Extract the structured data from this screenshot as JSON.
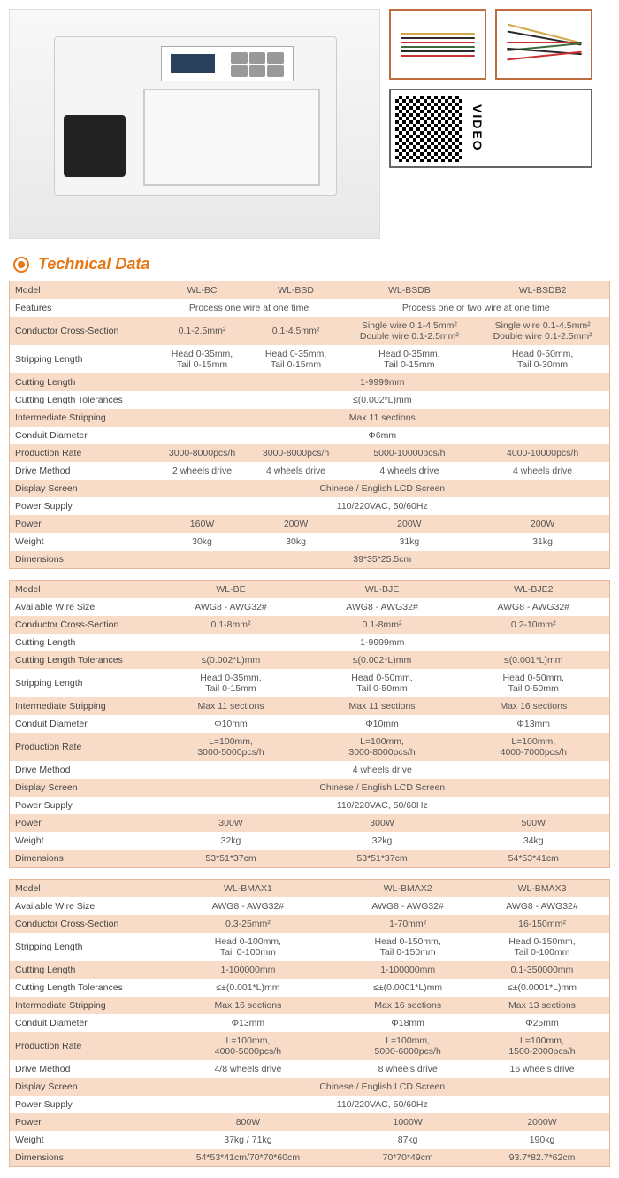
{
  "header": {
    "title": "Technical Data",
    "qr_label": "VIDEO"
  },
  "wire_colors": [
    "#d4a84a",
    "#2a2a2a",
    "#c93030",
    "#3a6b3a",
    "#2a2a2a",
    "#c93030"
  ],
  "tables": [
    {
      "cols": 4,
      "rows": [
        {
          "label": "Model",
          "vals": [
            "WL-BC",
            "WL-BSD",
            "WL-BSDB",
            "WL-BSDB2"
          ]
        },
        {
          "label": "Features",
          "span": [
            [
              0,
              2,
              "Process one wire at one time"
            ],
            [
              2,
              2,
              "Process one or two wire at one time"
            ]
          ]
        },
        {
          "label": "Conductor Cross-Section",
          "vals": [
            "0.1-2.5mm²",
            "0.1-4.5mm²",
            "Single wire 0.1-4.5mm²\nDouble wire 0.1-2.5mm²",
            "Single wire 0.1-4.5mm²\nDouble wire 0.1-2.5mm²"
          ]
        },
        {
          "label": "Stripping Length",
          "vals": [
            "Head 0-35mm,\nTail 0-15mm",
            "Head 0-35mm,\nTail 0-15mm",
            "Head 0-35mm,\nTail 0-15mm",
            "Head 0-50mm,\nTail 0-30mm"
          ]
        },
        {
          "label": "Cutting Length",
          "span": [
            [
              0,
              4,
              "1-9999mm"
            ]
          ]
        },
        {
          "label": "Cutting Length Tolerances",
          "span": [
            [
              0,
              4,
              "≤(0.002*L)mm"
            ]
          ]
        },
        {
          "label": "Intermediate Stripping",
          "span": [
            [
              0,
              4,
              "Max 11 sections"
            ]
          ]
        },
        {
          "label": "Conduit Diameter",
          "span": [
            [
              0,
              4,
              "Φ6mm"
            ]
          ]
        },
        {
          "label": "Production Rate",
          "vals": [
            "3000-8000pcs/h",
            "3000-8000pcs/h",
            "5000-10000pcs/h",
            "4000-10000pcs/h"
          ]
        },
        {
          "label": "Drive Method",
          "vals": [
            "2 wheels drive",
            "4 wheels drive",
            "4 wheels drive",
            "4 wheels drive"
          ]
        },
        {
          "label": "Display Screen",
          "span": [
            [
              0,
              4,
              "Chinese / English LCD Screen"
            ]
          ]
        },
        {
          "label": "Power Supply",
          "span": [
            [
              0,
              4,
              "110/220VAC, 50/60Hz"
            ]
          ]
        },
        {
          "label": "Power",
          "vals": [
            "160W",
            "200W",
            "200W",
            "200W"
          ]
        },
        {
          "label": "Weight",
          "vals": [
            "30kg",
            "30kg",
            "31kg",
            "31kg"
          ]
        },
        {
          "label": "Dimensions",
          "span": [
            [
              0,
              4,
              "39*35*25.5cm"
            ]
          ]
        }
      ]
    },
    {
      "cols": 3,
      "rows": [
        {
          "label": "Model",
          "vals": [
            "WL-BE",
            "WL-BJE",
            "WL-BJE2"
          ]
        },
        {
          "label": "Available Wire Size",
          "vals": [
            "AWG8 - AWG32#",
            "AWG8 - AWG32#",
            "AWG8 - AWG32#"
          ]
        },
        {
          "label": "Conductor Cross-Section",
          "vals": [
            "0.1-8mm²",
            "0.1-8mm²",
            "0.2-10mm²"
          ]
        },
        {
          "label": "Cutting Length",
          "span": [
            [
              0,
              3,
              "1-9999mm"
            ]
          ]
        },
        {
          "label": "Cutting Length Tolerances",
          "vals": [
            "≤(0.002*L)mm",
            "≤(0.002*L)mm",
            "≤(0.001*L)mm"
          ]
        },
        {
          "label": "Stripping Length",
          "vals": [
            "Head 0-35mm,\nTail 0-15mm",
            "Head 0-50mm,\nTail 0-50mm",
            "Head 0-50mm,\nTail 0-50mm"
          ]
        },
        {
          "label": "Intermediate Stripping",
          "vals": [
            "Max 11 sections",
            "Max 11 sections",
            "Max 16 sections"
          ]
        },
        {
          "label": "Conduit Diameter",
          "vals": [
            "Φ10mm",
            "Φ10mm",
            "Φ13mm"
          ]
        },
        {
          "label": "Production Rate",
          "vals": [
            "L=100mm,\n3000-5000pcs/h",
            "L=100mm,\n3000-8000pcs/h",
            "L=100mm,\n4000-7000pcs/h"
          ]
        },
        {
          "label": "Drive Method",
          "span": [
            [
              0,
              3,
              "4 wheels drive"
            ]
          ]
        },
        {
          "label": "Display Screen",
          "span": [
            [
              0,
              3,
              "Chinese / English LCD Screen"
            ]
          ]
        },
        {
          "label": "Power Supply",
          "span": [
            [
              0,
              3,
              "110/220VAC, 50/60Hz"
            ]
          ]
        },
        {
          "label": "Power",
          "vals": [
            "300W",
            "300W",
            "500W"
          ]
        },
        {
          "label": "Weight",
          "vals": [
            "32kg",
            "32kg",
            "34kg"
          ]
        },
        {
          "label": "Dimensions",
          "vals": [
            "53*51*37cm",
            "53*51*37cm",
            "54*53*41cm"
          ]
        }
      ]
    },
    {
      "cols": 3,
      "rows": [
        {
          "label": "Model",
          "vals": [
            "WL-BMAX1",
            "WL-BMAX2",
            "WL-BMAX3"
          ]
        },
        {
          "label": "Available Wire Size",
          "vals": [
            "AWG8 - AWG32#",
            "AWG8 - AWG32#",
            "AWG8 - AWG32#"
          ]
        },
        {
          "label": "Conductor Cross-Section",
          "vals": [
            "0.3-25mm²",
            "1-70mm²",
            "16-150mm²"
          ]
        },
        {
          "label": "Stripping Length",
          "vals": [
            "Head 0-100mm,\nTail 0-100mm",
            "Head 0-150mm,\nTail 0-150mm",
            "Head 0-150mm,\nTail 0-100mm"
          ]
        },
        {
          "label": "Cutting Length",
          "vals": [
            "1-100000mm",
            "1-100000mm",
            "0.1-350000mm"
          ]
        },
        {
          "label": "Cutting Length Tolerances",
          "vals": [
            "≤±(0.001*L)mm",
            "≤±(0.0001*L)mm",
            "≤±(0.0001*L)mm"
          ]
        },
        {
          "label": "Intermediate Stripping",
          "vals": [
            "Max 16 sections",
            "Max 16 sections",
            "Max 13 sections"
          ]
        },
        {
          "label": "Conduit Diameter",
          "vals": [
            "Φ13mm",
            "Φ18mm",
            "Φ25mm"
          ]
        },
        {
          "label": "Production Rate",
          "vals": [
            "L=100mm,\n4000-5000pcs/h",
            "L=100mm,\n5000-6000pcs/h",
            "L=100mm,\n1500-2000pcs/h"
          ]
        },
        {
          "label": "Drive Method",
          "vals": [
            "4/8 wheels drive",
            "8 wheels drive",
            "16 wheels drive"
          ]
        },
        {
          "label": "Display Screen",
          "span": [
            [
              0,
              3,
              "Chinese / English LCD Screen"
            ]
          ]
        },
        {
          "label": "Power Supply",
          "span": [
            [
              0,
              3,
              "110/220VAC, 50/60Hz"
            ]
          ]
        },
        {
          "label": "Power",
          "vals": [
            "800W",
            "1000W",
            "2000W"
          ]
        },
        {
          "label": "Weight",
          "vals": [
            "37kg / 71kg",
            "87kg",
            "190kg"
          ]
        },
        {
          "label": "Dimensions",
          "vals": [
            "54*53*41cm/70*70*60cm",
            "70*70*49cm",
            "93.7*82.7*62cm"
          ]
        }
      ]
    }
  ]
}
